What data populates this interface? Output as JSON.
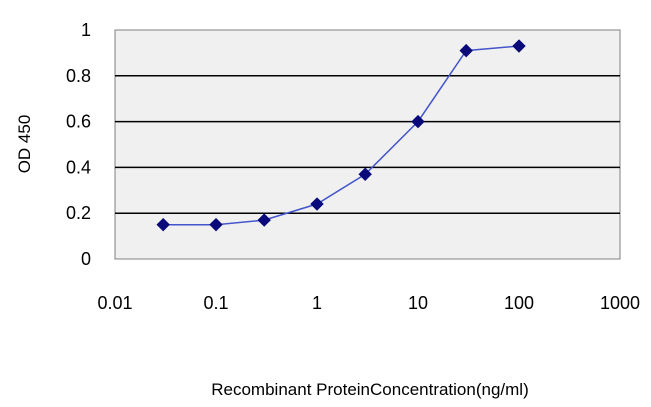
{
  "chart_data": {
    "type": "line",
    "title": "",
    "xlabel": "Recombinant ProteinConcentration(ng/ml)",
    "ylabel": "OD 450",
    "x_scale": "log",
    "xlim": [
      0.01,
      1000
    ],
    "ylim": [
      0,
      1
    ],
    "x_ticks": [
      "0.01",
      "0.1",
      "1",
      "10",
      "100",
      "1000"
    ],
    "y_ticks": [
      "0",
      "0.2",
      "0.4",
      "0.6",
      "0.8",
      "1"
    ],
    "grid": "horizontal",
    "legend": "none",
    "colors": {
      "plot_bg": "#f0f0f0",
      "line": "#4455cc",
      "marker": "#0a0a7a",
      "grid": "#000000"
    },
    "series": [
      {
        "x": [
          0.03,
          0.1,
          0.3,
          1,
          3,
          10,
          30,
          100
        ],
        "y": [
          0.15,
          0.15,
          0.17,
          0.24,
          0.37,
          0.6,
          0.91,
          0.93
        ]
      }
    ]
  }
}
